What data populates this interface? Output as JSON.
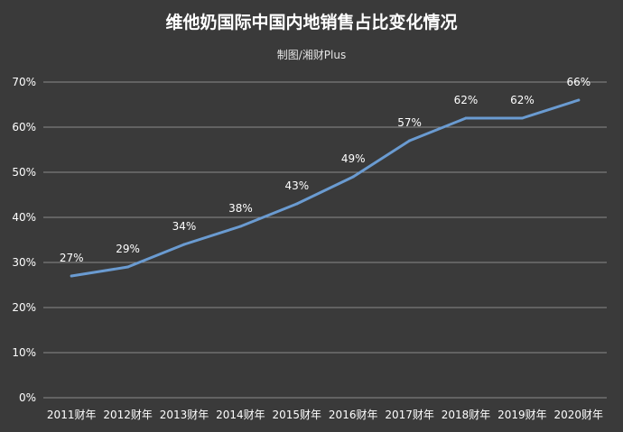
{
  "chart_data": {
    "type": "line",
    "title": "维他奶国际中国内地销售占比变化情况",
    "subtitle": "制图/湘财Plus",
    "categories": [
      "2011财年",
      "2012财年",
      "2013财年",
      "2014财年",
      "2015财年",
      "2016财年",
      "2017财年",
      "2018财年",
      "2019财年",
      "2020财年"
    ],
    "series": [
      {
        "values": [
          27,
          29,
          34,
          38,
          43,
          49,
          57,
          62,
          62,
          66
        ],
        "labels": [
          "27%",
          "29%",
          "34%",
          "38%",
          "43%",
          "49%",
          "57%",
          "62%",
          "62%",
          "66%"
        ]
      }
    ],
    "ylim": [
      0,
      70
    ],
    "yticks": [
      0,
      10,
      20,
      30,
      40,
      50,
      60,
      70
    ],
    "ytick_labels": [
      "0%",
      "10%",
      "20%",
      "30%",
      "40%",
      "50%",
      "60%",
      "70%"
    ],
    "grid": true,
    "colors": {
      "line": "#6a9bd1",
      "grid": "#8a8a8a",
      "text": "#ffffff",
      "background": "#3a3a3a"
    }
  }
}
